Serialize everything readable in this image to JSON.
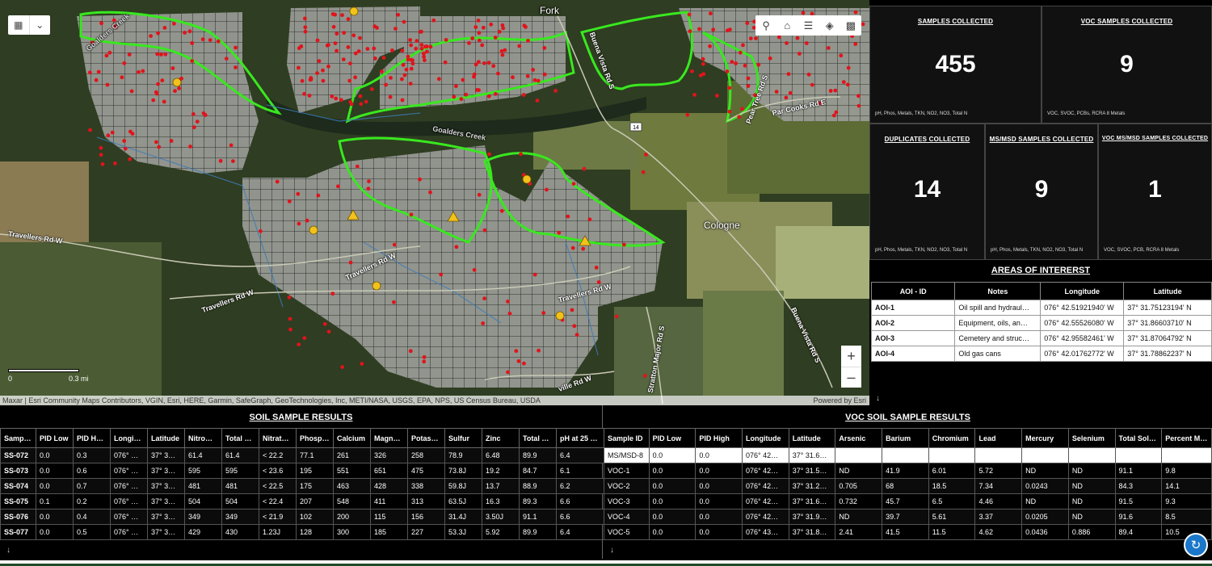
{
  "map": {
    "attribution": "Maxar | Esri Community Maps Contributors, VGIN, Esri, HERE, Garmin, SafeGraph, GeoTechnologies, Inc, METI/NASA, USGS, EPA, NPS, US Census Bureau, USDA",
    "powered_by": "Powered by Esri",
    "scale_label": "0.3 mi",
    "scale_zero": "0",
    "place_labels": [
      "Fork",
      "Cologne"
    ],
    "road_labels": [
      "Travellers Rd W",
      "Travellers Rd W",
      "Travellers Rd W",
      "Travellers Rd W",
      "Buena Vista Rd S",
      "Buena Vista Rd S",
      "Pear Tree Rd S",
      "Par Cooks Rd E",
      "Stratton Major Rd S",
      "Goalders Creek",
      "Goalders Creek",
      "ville Rd W"
    ],
    "route_shield": "14",
    "zoom_in": "+",
    "zoom_out": "–",
    "tool_icons": [
      "search-icon",
      "home-icon",
      "legend-icon",
      "layers-icon",
      "qr-icon"
    ]
  },
  "stats": {
    "samples": {
      "title": "SAMPLES COLLECTED",
      "value": "455",
      "sub": "pH, Phos, Metals, TKN, NO2, NO3, Total N"
    },
    "voc": {
      "title": "VOC SAMPLES COLLECTED",
      "value": "9",
      "sub": "VOC, SVOC, PCBs, RCRA 8 Metals"
    },
    "duplicates": {
      "title": "DUPLICATES COLLECTED",
      "value": "14",
      "sub": "pH, Phos, Metals, TKN, NO2, NO3, Total N"
    },
    "msmsd": {
      "title": "MS/MSD SAMPLES COLLECTED",
      "value": "9",
      "sub": "pH, Phos, Metals, TKN, NO2, NO3, Total N"
    },
    "vocmsmsd": {
      "title": "VOC MS/MSD SAMPLES COLLECTED",
      "value": "1",
      "sub": "VOC, SVOC, PCB, RCRA 8 Metals"
    }
  },
  "aoi": {
    "title": "AREAS OF INTERERST",
    "columns": [
      "AOI - ID",
      "Notes",
      "Longitude",
      "Latitude"
    ],
    "rows": [
      [
        "AOI-1",
        "Oil spill and hydraul…",
        "076° 42.51921940' W",
        "37° 31.75123194' N"
      ],
      [
        "AOI-2",
        "Equipment, oils, an…",
        "076° 42.55526080' W",
        "37° 31.86603710' N"
      ],
      [
        "AOI-3",
        "Cemetery and struc…",
        "076° 42.95582461' W",
        "37° 31.87064792' N"
      ],
      [
        "AOI-4",
        "Old gas cans",
        "076° 42.01762772' W",
        "37° 31.78862237' N"
      ]
    ]
  },
  "soil": {
    "title": "SOIL SAMPLE RESULTS",
    "columns": [
      "Samp…",
      "PID Low",
      "PID H…",
      "Longi…",
      "Latitude",
      "Nitro…",
      "Total …",
      "Nitrat…",
      "Phosp…",
      "Calcium",
      "Magn…",
      "Potas…",
      "Sulfur",
      "Zinc",
      "Total …",
      "pH at 25 …"
    ],
    "rows": [
      [
        "SS-072",
        "0.0",
        "0.3",
        "076° …",
        "37° 3…",
        "61.4",
        "61.4",
        "< 22.2",
        "77.1",
        "261",
        "326",
        "258",
        "78.9",
        "6.48",
        "89.9",
        "6.4"
      ],
      [
        "SS-073",
        "0.0",
        "0.6",
        "076° …",
        "37° 3…",
        "595",
        "595",
        "< 23.6",
        "195",
        "551",
        "651",
        "475",
        "73.8J",
        "19.2",
        "84.7",
        "6.1"
      ],
      [
        "SS-074",
        "0.0",
        "0.7",
        "076° …",
        "37° 3…",
        "481",
        "481",
        "< 22.5",
        "175",
        "463",
        "428",
        "338",
        "59.8J",
        "13.7",
        "88.9",
        "6.2"
      ],
      [
        "SS-075",
        "0.1",
        "0.2",
        "076° …",
        "37° 3…",
        "504",
        "504",
        "< 22.4",
        "207",
        "548",
        "411",
        "313",
        "63.5J",
        "16.3",
        "89.3",
        "6.6"
      ],
      [
        "SS-076",
        "0.0",
        "0.4",
        "076° …",
        "37° 3…",
        "349",
        "349",
        "< 21.9",
        "102",
        "200",
        "115",
        "156",
        "31.4J",
        "3.50J",
        "91.1",
        "6.6"
      ],
      [
        "SS-077",
        "0.0",
        "0.5",
        "076° …",
        "37° 3…",
        "429",
        "430",
        "1.23J",
        "128",
        "300",
        "185",
        "227",
        "53.3J",
        "5.92",
        "89.9",
        "6.4"
      ]
    ]
  },
  "voc": {
    "title": "VOC SOIL SAMPLE RESULTS",
    "columns": [
      "Sample ID",
      "PID Low",
      "PID High",
      "Longitude",
      "Latitude",
      "Arsenic",
      "Barium",
      "Chromium",
      "Lead",
      "Mercury",
      "Selenium",
      "Total Sol…",
      "Percent M…"
    ],
    "rows": [
      [
        "MS/MSD-8",
        "0.0",
        "0.0",
        "076° 42…",
        "37° 31.6…",
        "",
        "",
        "",
        "",
        "",
        "",
        "",
        ""
      ],
      [
        "VOC-1",
        "0.0",
        "0.0",
        "076° 42…",
        "37° 31.5…",
        "ND",
        "41.9",
        "6.01",
        "5.72",
        "ND",
        "ND",
        "91.1",
        "9.8"
      ],
      [
        "VOC-2",
        "0.0",
        "0.0",
        "076° 42…",
        "37° 31.2…",
        "0.705",
        "68",
        "18.5",
        "7.34",
        "0.0243",
        "ND",
        "84.3",
        "14.1"
      ],
      [
        "VOC-3",
        "0.0",
        "0.0",
        "076° 42…",
        "37° 31.6…",
        "0.732",
        "45.7",
        "6.5",
        "4.46",
        "ND",
        "ND",
        "91.5",
        "9.3"
      ],
      [
        "VOC-4",
        "0.0",
        "0.0",
        "076° 42…",
        "37° 31.9…",
        "ND",
        "39.7",
        "5.61",
        "3.37",
        "0.0205",
        "ND",
        "91.6",
        "8.5"
      ],
      [
        "VOC-5",
        "0.0",
        "0.0",
        "076° 43…",
        "37° 31.8…",
        "2.41",
        "41.5",
        "11.5",
        "4.62",
        "0.0436",
        "0.886",
        "89.4",
        "10.5"
      ]
    ]
  },
  "download_icon": "↓",
  "refresh_icon": "refresh-icon",
  "colors": {
    "sample_dot": "#e0141c",
    "aoi_outline": "#39e81f",
    "accent": "#1a77c9"
  }
}
